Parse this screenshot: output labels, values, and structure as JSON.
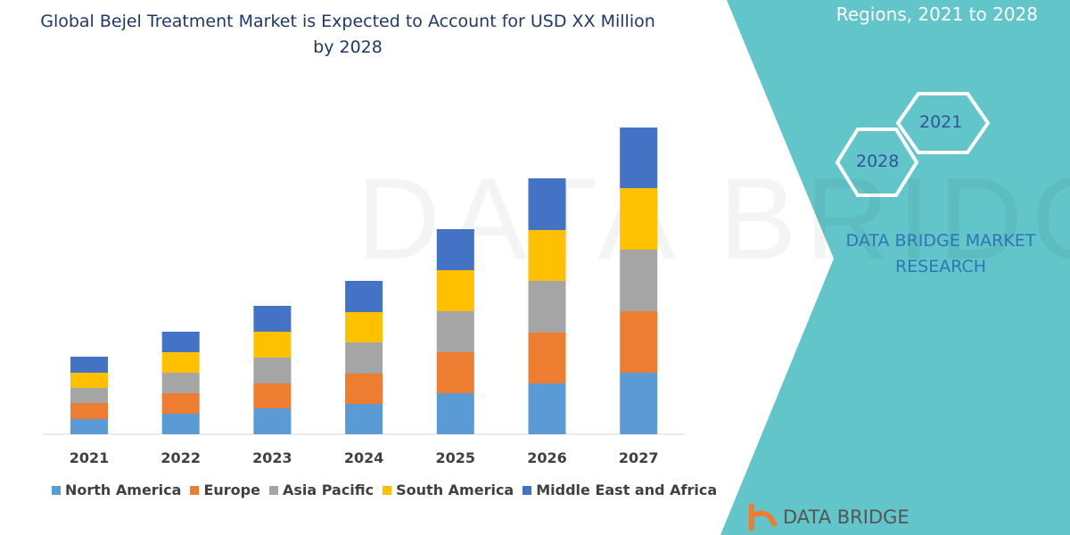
{
  "header": {
    "title": "Global Bejel Treatment Market is Expected to Account for USD XX Million by 2028"
  },
  "side_panel": {
    "title": "Regions, 2021 to 2028",
    "hex_labels": [
      "2021",
      "2028"
    ],
    "brand": "DATA BRIDGE MARKET RESEARCH",
    "logo_text": "DATA BRIDGE",
    "watermark": "DATA BRIDGE MARKET RESEARCH"
  },
  "colors": {
    "teal": "#62c5c9",
    "title": "#1f3864"
  },
  "chart_data": {
    "type": "bar",
    "stacked": true,
    "categories": [
      "2021",
      "2022",
      "2023",
      "2024",
      "2025",
      "2026",
      "2027"
    ],
    "series": [
      {
        "name": "North America",
        "color": "#5b9bd5",
        "values": [
          17,
          23,
          29,
          34,
          46,
          57,
          69
        ]
      },
      {
        "name": "Europe",
        "color": "#ed7d31",
        "values": [
          18,
          23,
          28,
          34,
          46,
          57,
          69
        ]
      },
      {
        "name": "Asia Pacific",
        "color": "#a5a5a5",
        "values": [
          17,
          23,
          29,
          35,
          46,
          58,
          69
        ]
      },
      {
        "name": "South America",
        "color": "#ffc000",
        "values": [
          17,
          23,
          29,
          34,
          46,
          57,
          69
        ]
      },
      {
        "name": "Middle East and Africa",
        "color": "#4472c4",
        "values": [
          18,
          23,
          29,
          35,
          46,
          58,
          68
        ]
      }
    ],
    "title": "Global Bejel Treatment Market is Expected to Account for USD XX Million by 2028",
    "xlabel": "",
    "ylabel": "",
    "grid": false,
    "legend": "bottom"
  }
}
